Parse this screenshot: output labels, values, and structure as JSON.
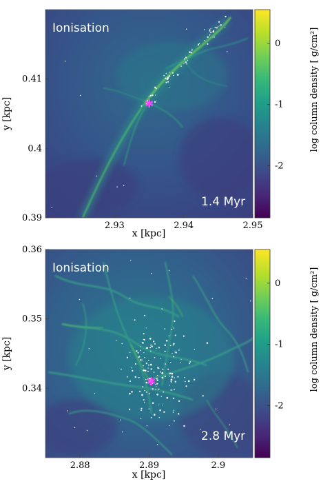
{
  "chart_data": [
    {
      "type": "heatmap",
      "label": "Ionisation",
      "time_label": "1.4 Myr",
      "xlabel": "x [kpc]",
      "ylabel": "y [kpc]",
      "xlim": [
        2.92,
        2.95
      ],
      "ylim": [
        0.39,
        0.42
      ],
      "xticks": [
        2.93,
        2.94,
        2.95
      ],
      "xtick_labels": [
        "2.93",
        "2.94",
        "2.95"
      ],
      "yticks": [
        0.39,
        0.4,
        0.41
      ],
      "ytick_labels": [
        "0.39",
        "0.4",
        "0.41"
      ],
      "colorbar": {
        "label": "log column density [ g/cm²]",
        "range": [
          -2.85,
          0.55
        ],
        "ticks": [
          0,
          -1,
          -2
        ],
        "tick_labels": [
          "0",
          "-1",
          "-2"
        ],
        "colormap": "viridis"
      },
      "source_marker": {
        "x": 2.9345,
        "y": 0.4064
      }
    },
    {
      "type": "heatmap",
      "label": "Ionisation",
      "time_label": "2.8 Myr",
      "xlabel": "x [kpc]",
      "ylabel": "y [kpc]",
      "xlim": [
        2.875,
        2.905
      ],
      "ylim": [
        0.33,
        0.36
      ],
      "xticks": [
        2.88,
        2.89,
        2.9
      ],
      "xtick_labels": [
        "2.88",
        "2.89",
        "2.9"
      ],
      "yticks": [
        0.34,
        0.35,
        0.36
      ],
      "ytick_labels": [
        "0.34",
        "0.35",
        "0.36"
      ],
      "colorbar": {
        "label": "log column density [ g/cm²]",
        "range": [
          -2.85,
          0.55
        ],
        "ticks": [
          0,
          -1,
          -2
        ],
        "tick_labels": [
          "0",
          "-1",
          "-2"
        ],
        "colormap": "viridis"
      },
      "source_marker": {
        "x": 2.8903,
        "y": 0.3412
      }
    }
  ],
  "colors": {
    "viridis": [
      "#440154",
      "#482878",
      "#3e4a89",
      "#31688e",
      "#26828e",
      "#1f9e89",
      "#35b779",
      "#6ece58",
      "#b5de2b",
      "#fde725"
    ],
    "marker": "#ff44ff",
    "stars": "#ffffff"
  }
}
